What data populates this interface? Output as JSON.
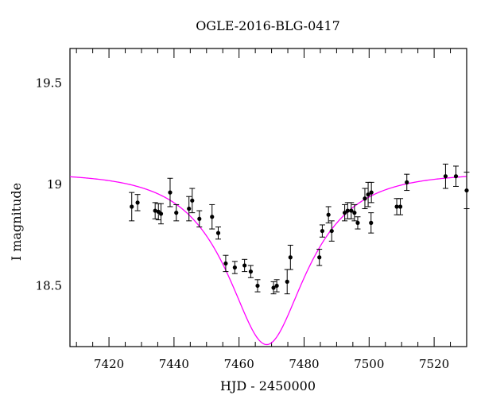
{
  "chart_data": {
    "type": "scatter",
    "title": "OGLE-2016-BLG-0417",
    "xlabel": "HJD - 2450000",
    "ylabel": "I magnitude",
    "xlim": [
      7408,
      7530
    ],
    "ylim": [
      19.67,
      18.2
    ],
    "y_inverted": true,
    "grid": false,
    "x_ticks": [
      7420,
      7440,
      7460,
      7480,
      7500,
      7520
    ],
    "y_ticks": [
      18.5,
      19,
      19.5
    ],
    "y_tick_labels": [
      "18.5",
      "19",
      "19.5"
    ],
    "series": [
      {
        "kind": "points_with_errorbars",
        "color": "#000000",
        "points": [
          {
            "x": 7427.0,
            "y": 18.89,
            "err": 0.07
          },
          {
            "x": 7428.8,
            "y": 18.91,
            "err": 0.04
          },
          {
            "x": 7434.2,
            "y": 18.87,
            "err": 0.04
          },
          {
            "x": 7435.2,
            "y": 18.865,
            "err": 0.04
          },
          {
            "x": 7436.0,
            "y": 18.855,
            "err": 0.05
          },
          {
            "x": 7438.8,
            "y": 18.96,
            "err": 0.07
          },
          {
            "x": 7440.7,
            "y": 18.86,
            "err": 0.04
          },
          {
            "x": 7444.6,
            "y": 18.88,
            "err": 0.06
          },
          {
            "x": 7445.6,
            "y": 18.92,
            "err": 0.06
          },
          {
            "x": 7447.8,
            "y": 18.83,
            "err": 0.04
          },
          {
            "x": 7451.7,
            "y": 18.84,
            "err": 0.06
          },
          {
            "x": 7453.6,
            "y": 18.76,
            "err": 0.03
          },
          {
            "x": 7455.9,
            "y": 18.61,
            "err": 0.04
          },
          {
            "x": 7458.7,
            "y": 18.59,
            "err": 0.03
          },
          {
            "x": 7461.7,
            "y": 18.6,
            "err": 0.03
          },
          {
            "x": 7463.6,
            "y": 18.57,
            "err": 0.03
          },
          {
            "x": 7465.7,
            "y": 18.5,
            "err": 0.03
          },
          {
            "x": 7470.6,
            "y": 18.49,
            "err": 0.03
          },
          {
            "x": 7471.6,
            "y": 18.5,
            "err": 0.03
          },
          {
            "x": 7474.8,
            "y": 18.52,
            "err": 0.06
          },
          {
            "x": 7475.8,
            "y": 18.64,
            "err": 0.06
          },
          {
            "x": 7484.7,
            "y": 18.64,
            "err": 0.04
          },
          {
            "x": 7485.6,
            "y": 18.77,
            "err": 0.03
          },
          {
            "x": 7487.5,
            "y": 18.85,
            "err": 0.04
          },
          {
            "x": 7488.5,
            "y": 18.77,
            "err": 0.05
          },
          {
            "x": 7492.5,
            "y": 18.86,
            "err": 0.04
          },
          {
            "x": 7493.4,
            "y": 18.87,
            "err": 0.04
          },
          {
            "x": 7494.5,
            "y": 18.87,
            "err": 0.04
          },
          {
            "x": 7495.5,
            "y": 18.86,
            "err": 0.04
          },
          {
            "x": 7496.5,
            "y": 18.81,
            "err": 0.03
          },
          {
            "x": 7498.7,
            "y": 18.93,
            "err": 0.05
          },
          {
            "x": 7499.7,
            "y": 18.95,
            "err": 0.06
          },
          {
            "x": 7500.7,
            "y": 18.96,
            "err": 0.05
          },
          {
            "x": 7500.6,
            "y": 18.81,
            "err": 0.05
          },
          {
            "x": 7508.5,
            "y": 18.89,
            "err": 0.04
          },
          {
            "x": 7509.6,
            "y": 18.89,
            "err": 0.04
          },
          {
            "x": 7511.6,
            "y": 19.01,
            "err": 0.04
          },
          {
            "x": 7523.5,
            "y": 19.04,
            "err": 0.06
          },
          {
            "x": 7526.7,
            "y": 19.04,
            "err": 0.05
          },
          {
            "x": 7530.0,
            "y": 18.97,
            "err": 0.09
          }
        ]
      },
      {
        "kind": "model_curve",
        "color": "#ff00ff",
        "model": {
          "type": "paczynski",
          "t0": 7468.5,
          "tE": 21,
          "u0": 0.5,
          "m_base": 19.04
        }
      }
    ]
  }
}
